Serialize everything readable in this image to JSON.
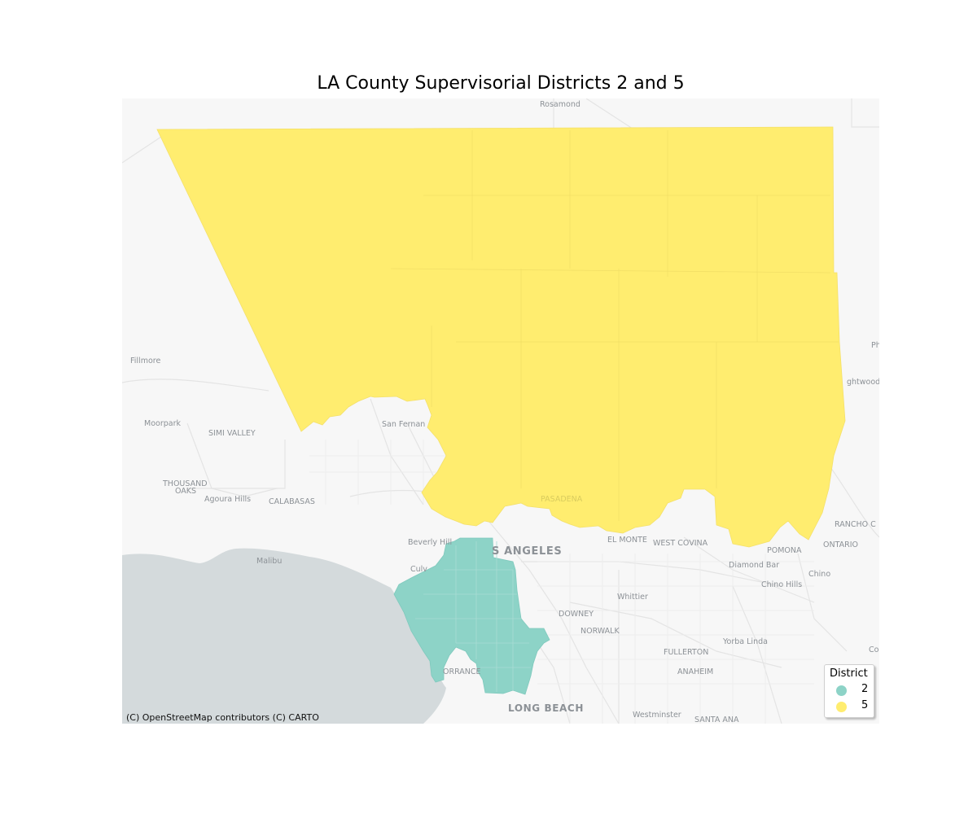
{
  "title": "LA County Supervisorial Districts 2 and 5",
  "attribution": "(C) OpenStreetMap contributors (C) CARTO",
  "legend": {
    "title": "District",
    "items": [
      {
        "label": "2",
        "color": "#8dd3c7"
      },
      {
        "label": "5",
        "color": "#ffed6f"
      }
    ]
  },
  "colors": {
    "land": "#f7f7f7",
    "ocean": "#d4dadc",
    "district_2": "#8dd3c7",
    "district_5": "#ffed6f"
  },
  "places": {
    "rosamond": "Rosamond",
    "fillmore": "Fillmore",
    "moorpark": "Moorpark",
    "simi_valley": "SIMI VALLEY",
    "thousand_oaks_1": "THOUSAND",
    "thousand_oaks_2": "OAKS",
    "agoura_hills": "Agoura Hills",
    "calabasas": "CALABASAS",
    "san_fernando": "San Fernan",
    "malibu": "Malibu",
    "beverly_hills": "Beverly Hill",
    "culver": "Culv",
    "los_angeles": "S ANGELES",
    "pasadena": "PASADENA",
    "el_monte": "EL MONTE",
    "west_covina": "WEST COVINA",
    "pomona": "POMONA",
    "ontario": "ONTARIO",
    "rancho": "RANCHO C",
    "diamond_bar": "Diamond Bar",
    "chino": "Chino",
    "chino_hills": "Chino Hills",
    "whittier": "Whittier",
    "downey": "DOWNEY",
    "norwalk": "NORWALK",
    "fullerton": "FULLERTON",
    "yorba_linda": "Yorba Linda",
    "anaheim": "ANAHEIM",
    "torrance": "ORRANCE",
    "long_beach": "LONG BEACH",
    "westminster": "Westminster",
    "santa_ana": "SANTA ANA",
    "wrightwood": "ghtwood",
    "phelan": "Ph",
    "corona": "Co"
  }
}
